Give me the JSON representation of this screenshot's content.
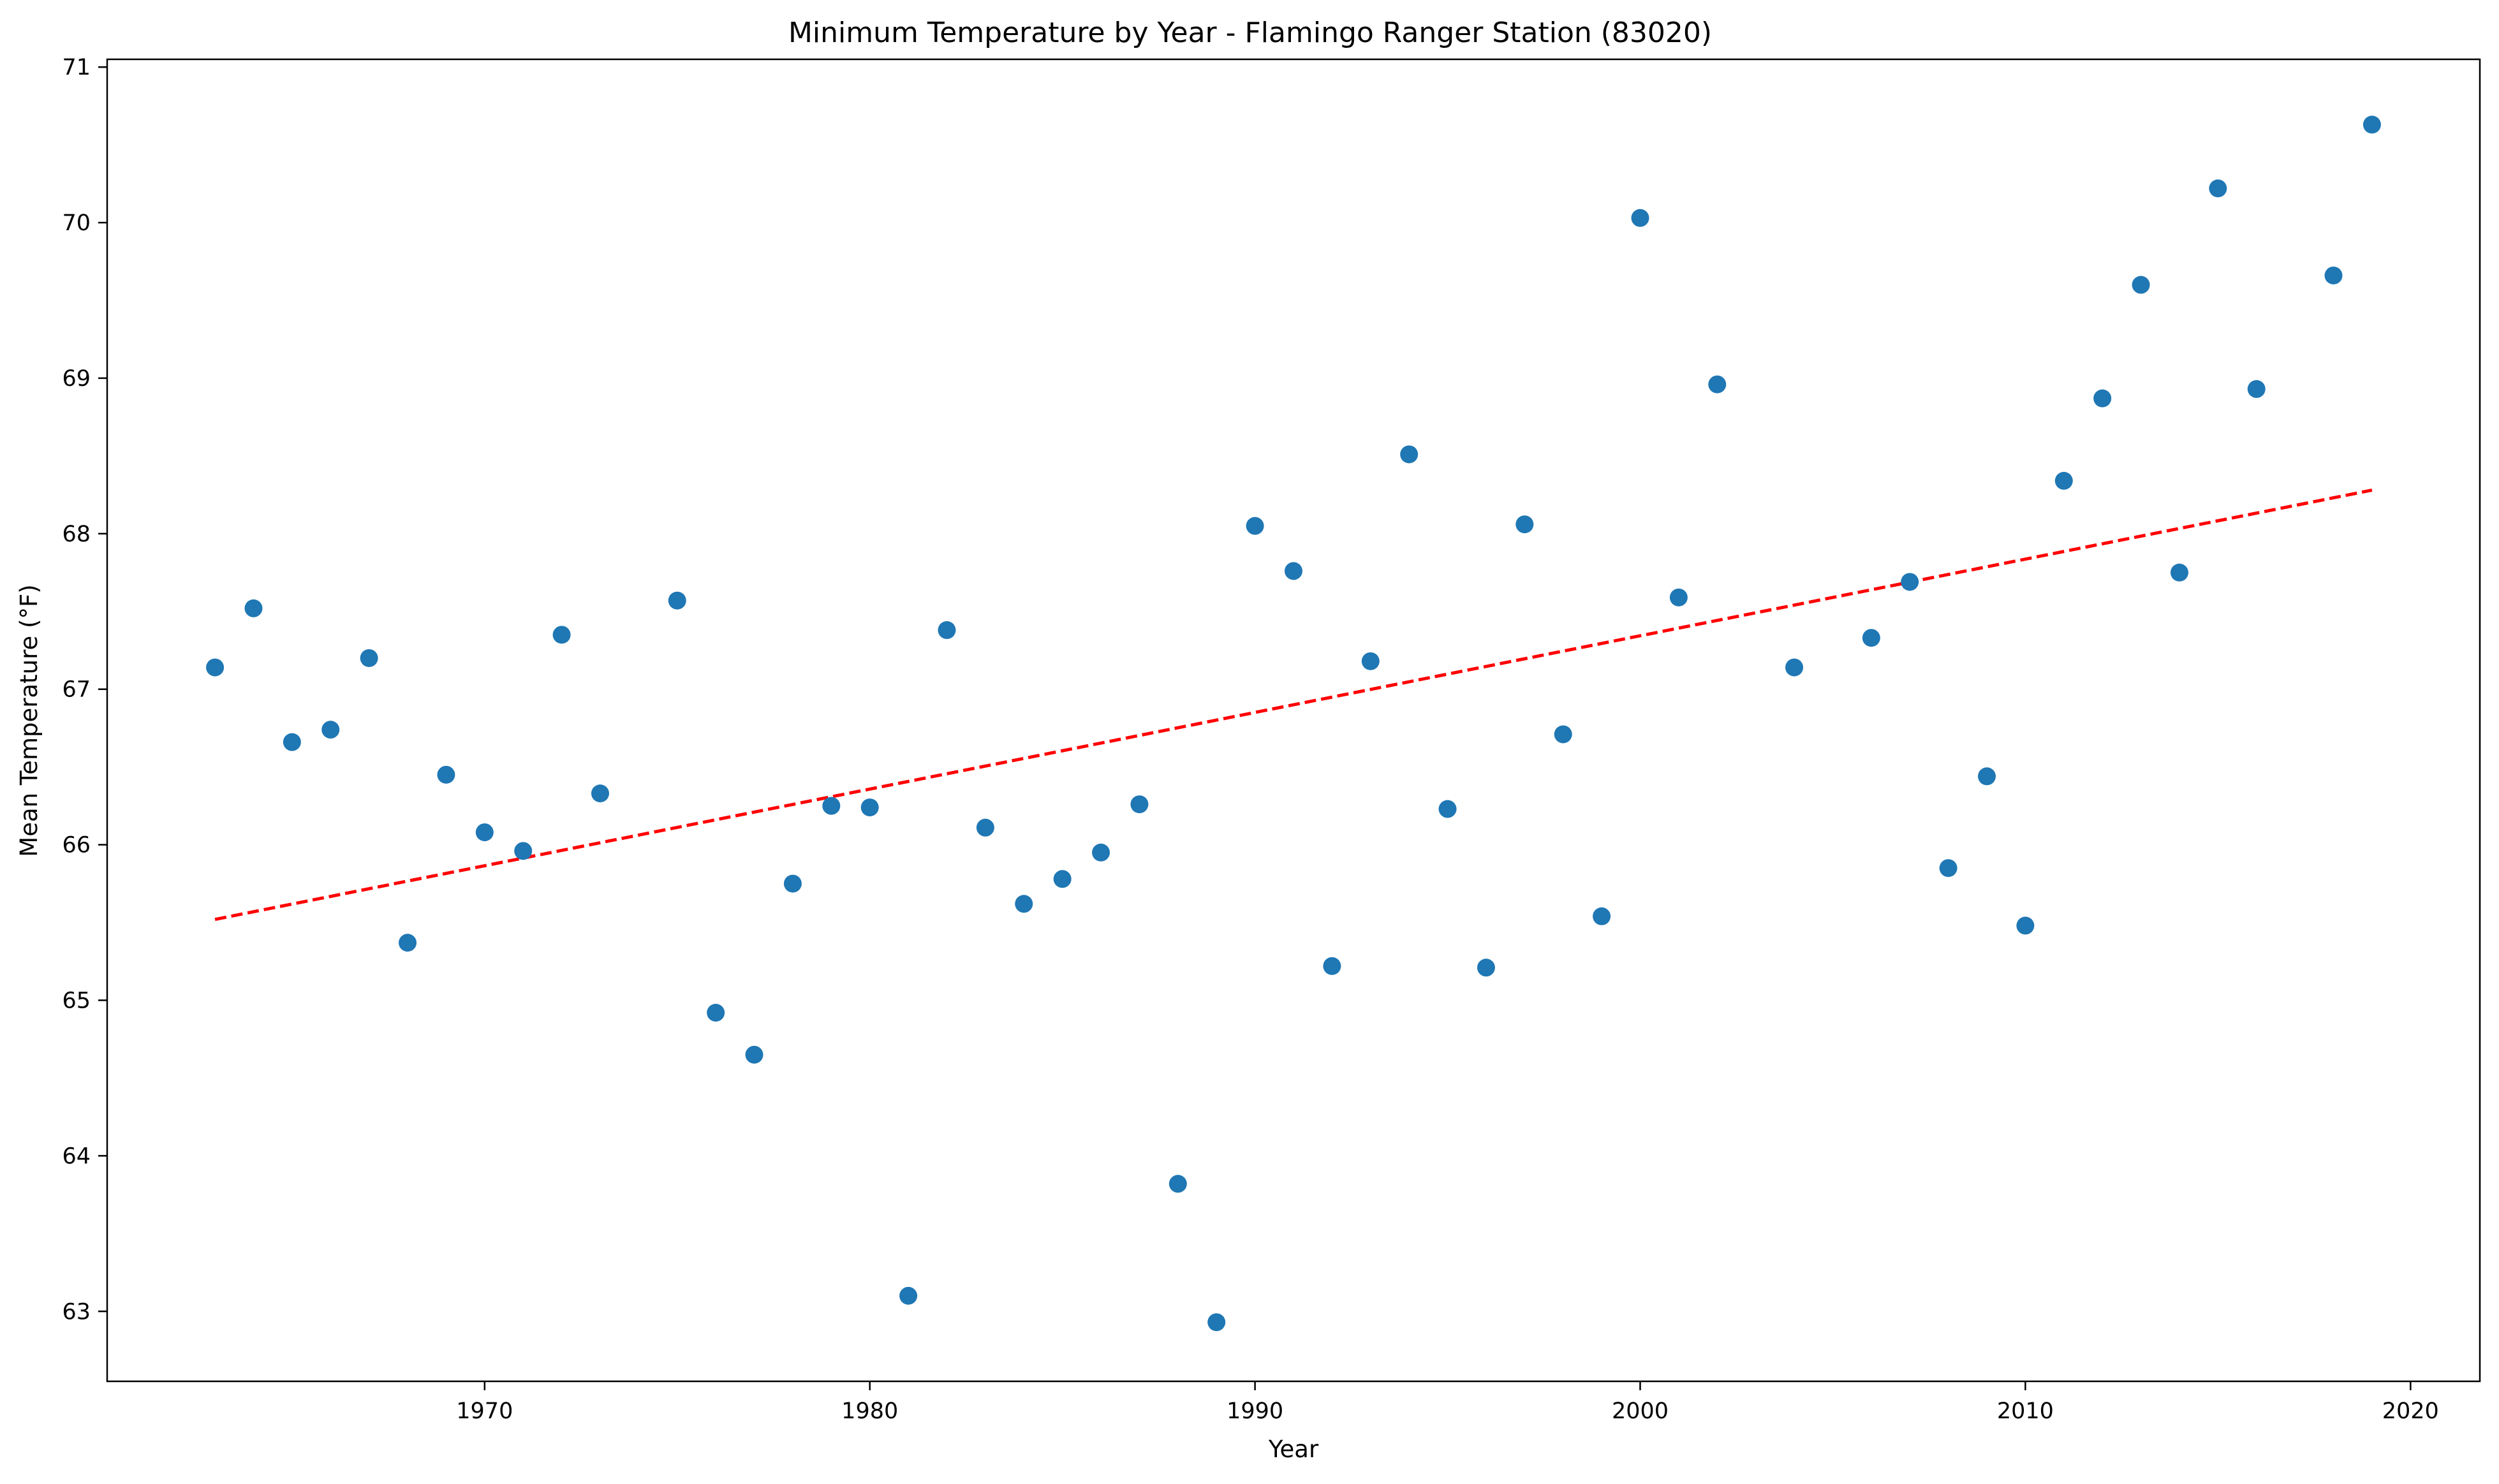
{
  "chart_data": {
    "type": "scatter",
    "title": "Minimum Temperature by Year - Flamingo Ranger Station (83020)",
    "xlabel": "Year",
    "ylabel": "Mean Temperature (°F)",
    "xlim": [
      1960.2,
      2021.8
    ],
    "ylim": [
      62.55,
      71.05
    ],
    "xticks": [
      1970,
      1980,
      1990,
      2000,
      2010,
      2020
    ],
    "yticks": [
      63,
      64,
      65,
      66,
      67,
      68,
      69,
      70,
      71
    ],
    "grid": false,
    "legend": "none",
    "point_color": "#1f77b4",
    "trend_color": "#ff0000",
    "trendline": {
      "x": [
        1963,
        2019
      ],
      "y": [
        65.52,
        68.28
      ],
      "style": "dashed"
    },
    "points": [
      {
        "x": 1963,
        "y": 67.14
      },
      {
        "x": 1964,
        "y": 67.52
      },
      {
        "x": 1965,
        "y": 66.66
      },
      {
        "x": 1966,
        "y": 66.74
      },
      {
        "x": 1967,
        "y": 67.2
      },
      {
        "x": 1968,
        "y": 65.37
      },
      {
        "x": 1969,
        "y": 66.45
      },
      {
        "x": 1970,
        "y": 66.08
      },
      {
        "x": 1971,
        "y": 65.96
      },
      {
        "x": 1972,
        "y": 67.35
      },
      {
        "x": 1973,
        "y": 66.33
      },
      {
        "x": 1975,
        "y": 67.57
      },
      {
        "x": 1976,
        "y": 64.92
      },
      {
        "x": 1977,
        "y": 64.65
      },
      {
        "x": 1978,
        "y": 65.75
      },
      {
        "x": 1979,
        "y": 66.25
      },
      {
        "x": 1980,
        "y": 66.24
      },
      {
        "x": 1981,
        "y": 63.1
      },
      {
        "x": 1982,
        "y": 67.38
      },
      {
        "x": 1983,
        "y": 66.11
      },
      {
        "x": 1984,
        "y": 65.62
      },
      {
        "x": 1985,
        "y": 65.78
      },
      {
        "x": 1986,
        "y": 65.95
      },
      {
        "x": 1987,
        "y": 66.26
      },
      {
        "x": 1988,
        "y": 63.82
      },
      {
        "x": 1989,
        "y": 62.93
      },
      {
        "x": 1990,
        "y": 68.05
      },
      {
        "x": 1991,
        "y": 67.76
      },
      {
        "x": 1992,
        "y": 65.22
      },
      {
        "x": 1993,
        "y": 67.18
      },
      {
        "x": 1994,
        "y": 68.51
      },
      {
        "x": 1995,
        "y": 66.23
      },
      {
        "x": 1996,
        "y": 65.21
      },
      {
        "x": 1997,
        "y": 68.06
      },
      {
        "x": 1998,
        "y": 66.71
      },
      {
        "x": 1999,
        "y": 65.54
      },
      {
        "x": 2000,
        "y": 70.03
      },
      {
        "x": 2001,
        "y": 67.59
      },
      {
        "x": 2002,
        "y": 68.96
      },
      {
        "x": 2004,
        "y": 67.14
      },
      {
        "x": 2006,
        "y": 67.33
      },
      {
        "x": 2007,
        "y": 67.69
      },
      {
        "x": 2008,
        "y": 65.85
      },
      {
        "x": 2009,
        "y": 66.44
      },
      {
        "x": 2010,
        "y": 65.48
      },
      {
        "x": 2011,
        "y": 68.34
      },
      {
        "x": 2012,
        "y": 68.87
      },
      {
        "x": 2013,
        "y": 69.6
      },
      {
        "x": 2014,
        "y": 67.75
      },
      {
        "x": 2015,
        "y": 70.22
      },
      {
        "x": 2016,
        "y": 68.93
      },
      {
        "x": 2018,
        "y": 69.66
      },
      {
        "x": 2019,
        "y": 70.63
      }
    ]
  }
}
